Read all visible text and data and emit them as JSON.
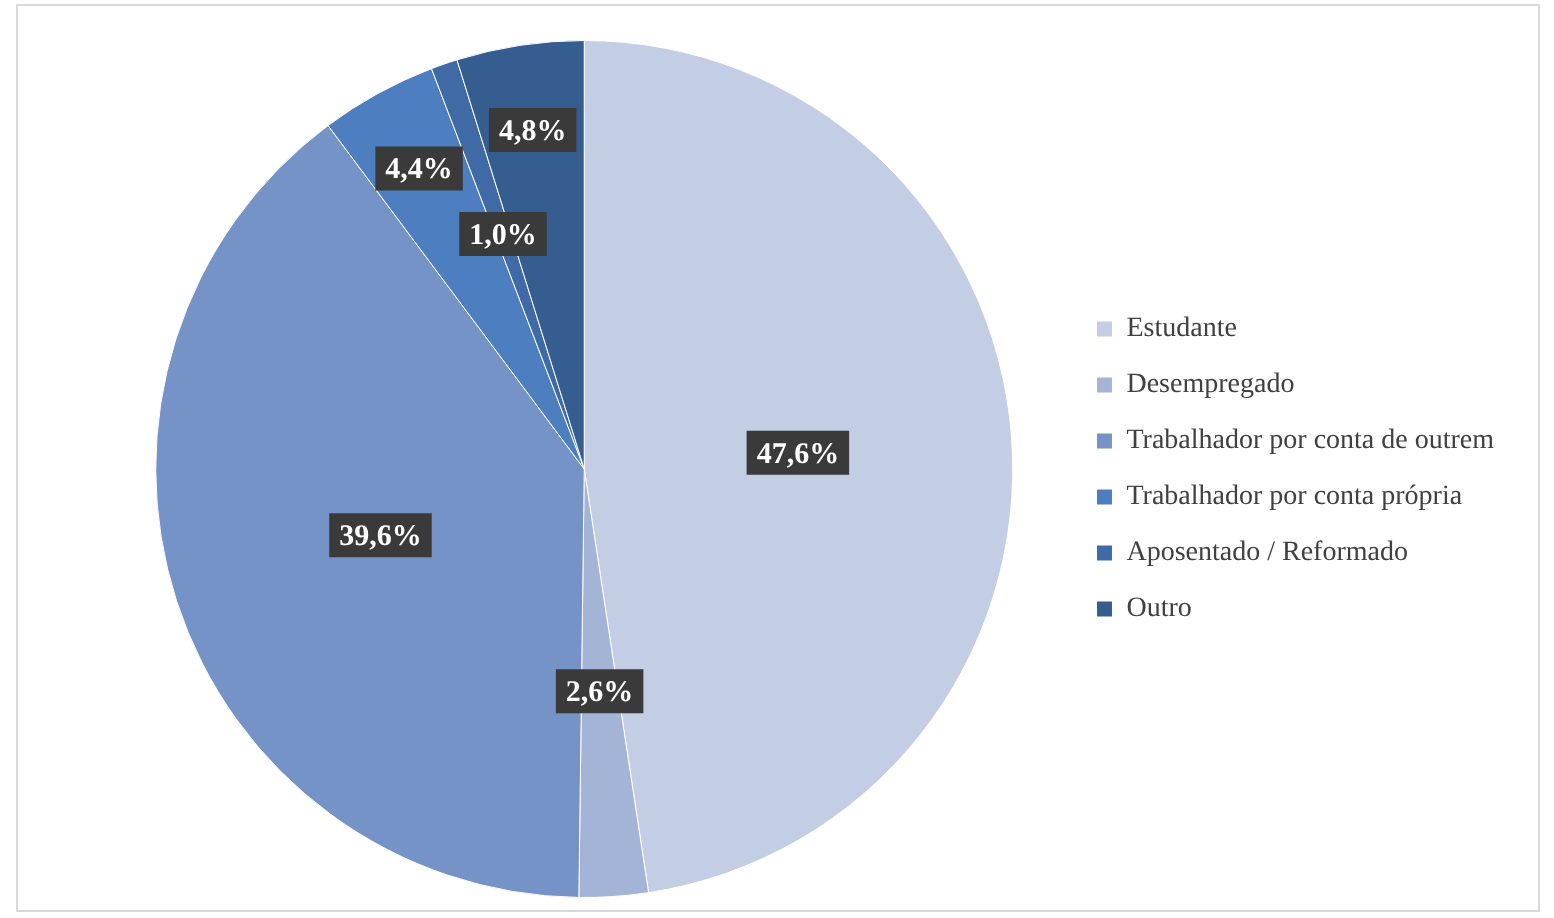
{
  "chart_data": {
    "type": "pie",
    "categories": [
      "Estudante",
      "Desempregado",
      "Trabalhador por conta de outrem",
      "Trabalhador por conta própria",
      "Aposentado / Reformado",
      "Outro"
    ],
    "values": [
      47.6,
      2.6,
      39.6,
      4.4,
      1.0,
      4.8
    ],
    "colors": [
      "#c3cde3",
      "#a3b4d7",
      "#7593c6",
      "#4d7ebf",
      "#3f6aa5",
      "#365d8f"
    ],
    "value_labels": [
      "47,6%",
      "2,6%",
      "39,6%",
      "4,4%",
      "1,0%",
      "4,8%"
    ],
    "legend": "right"
  }
}
